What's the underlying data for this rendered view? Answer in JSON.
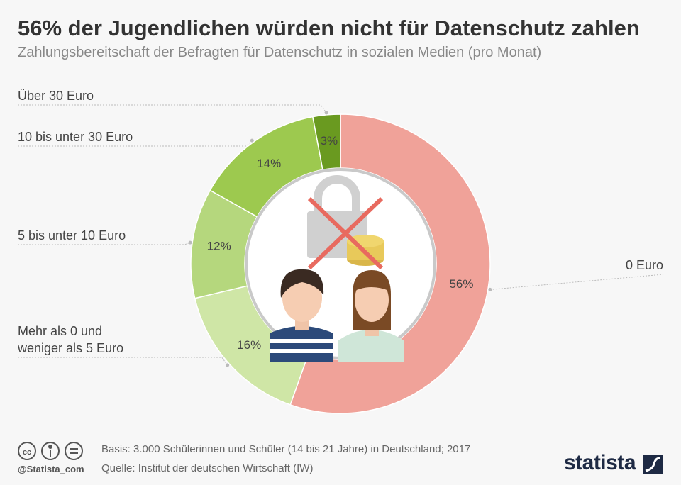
{
  "chart_data": {
    "type": "donut",
    "title": "56% der Jugendlichen würden nicht für Datenschutz zahlen",
    "subtitle": "Zahlungsbereitschaft der Befragten für Datenschutz in sozialen Medien (pro Monat)",
    "categories": [
      "0 Euro",
      "Mehr als 0 und\nweniger als 5 Euro",
      "5 bis unter 10 Euro",
      "10 bis unter 30 Euro",
      "Über 30 Euro"
    ],
    "values": [
      56,
      16,
      12,
      14,
      3
    ],
    "value_labels": [
      "56%",
      "16%",
      "12%",
      "14%",
      "3%"
    ],
    "colors": [
      "#f0a299",
      "#cfe6a6",
      "#b5d77d",
      "#9dc94f",
      "#6a9a20"
    ],
    "note": "Basis: 3.000 Schülerinnen und Schüler (14 bis 21 Jahre) in Deutschland; 2017",
    "source": "Quelle: Institut der deutschen Wirtschaft (IW)",
    "credit": "@Statista_com",
    "brand": "statista"
  }
}
